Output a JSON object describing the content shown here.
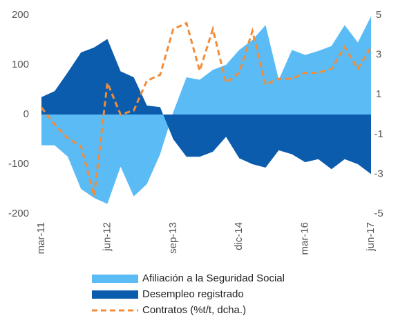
{
  "chart_data": {
    "type": "area",
    "categories": [
      "mar-11",
      null,
      null,
      null,
      null,
      "jun-12",
      null,
      null,
      null,
      null,
      "sep-13",
      null,
      null,
      null,
      null,
      "dic-14",
      null,
      null,
      null,
      null,
      "mar-16",
      null,
      null,
      null,
      null,
      "jun-17"
    ],
    "ylim": [
      -200,
      200
    ],
    "yticks": [
      -200,
      -100,
      0,
      100,
      200
    ],
    "y2lim": [
      -5,
      5
    ],
    "y2ticks": [
      -5,
      -3,
      -1,
      1,
      3,
      5
    ],
    "series": [
      {
        "name": "Afiliación a la Seguridad Social",
        "type": "area",
        "color": "#5bbcf5",
        "values": [
          -62,
          -62,
          -85,
          -150,
          -168,
          -180,
          -105,
          -165,
          -140,
          -80,
          5,
          75,
          70,
          90,
          100,
          130,
          150,
          180,
          70,
          130,
          120,
          128,
          138,
          180,
          145,
          198
        ]
      },
      {
        "name": "Desempleo registrado",
        "type": "area",
        "color": "#0b5cad",
        "values": [
          35,
          47,
          85,
          125,
          135,
          152,
          87,
          75,
          18,
          15,
          -50,
          -85,
          -85,
          -75,
          -45,
          -88,
          -100,
          -107,
          -72,
          -80,
          -96,
          -90,
          -110,
          -90,
          -100,
          -120
        ]
      },
      {
        "name": "Contratos (%t/t, dcha.)",
        "type": "line",
        "axis": "y2",
        "color": "#f28c38",
        "dashed": true,
        "values": [
          0.35,
          -0.5,
          -1.2,
          -1.6,
          -4.1,
          1.6,
          0,
          0.2,
          1.7,
          2.0,
          4.3,
          4.6,
          2.2,
          4.3,
          1.6,
          2.1,
          4.2,
          1.5,
          1.8,
          1.8,
          2.1,
          2.1,
          2.3,
          3.4,
          2.3,
          3.4
        ]
      }
    ]
  }
}
